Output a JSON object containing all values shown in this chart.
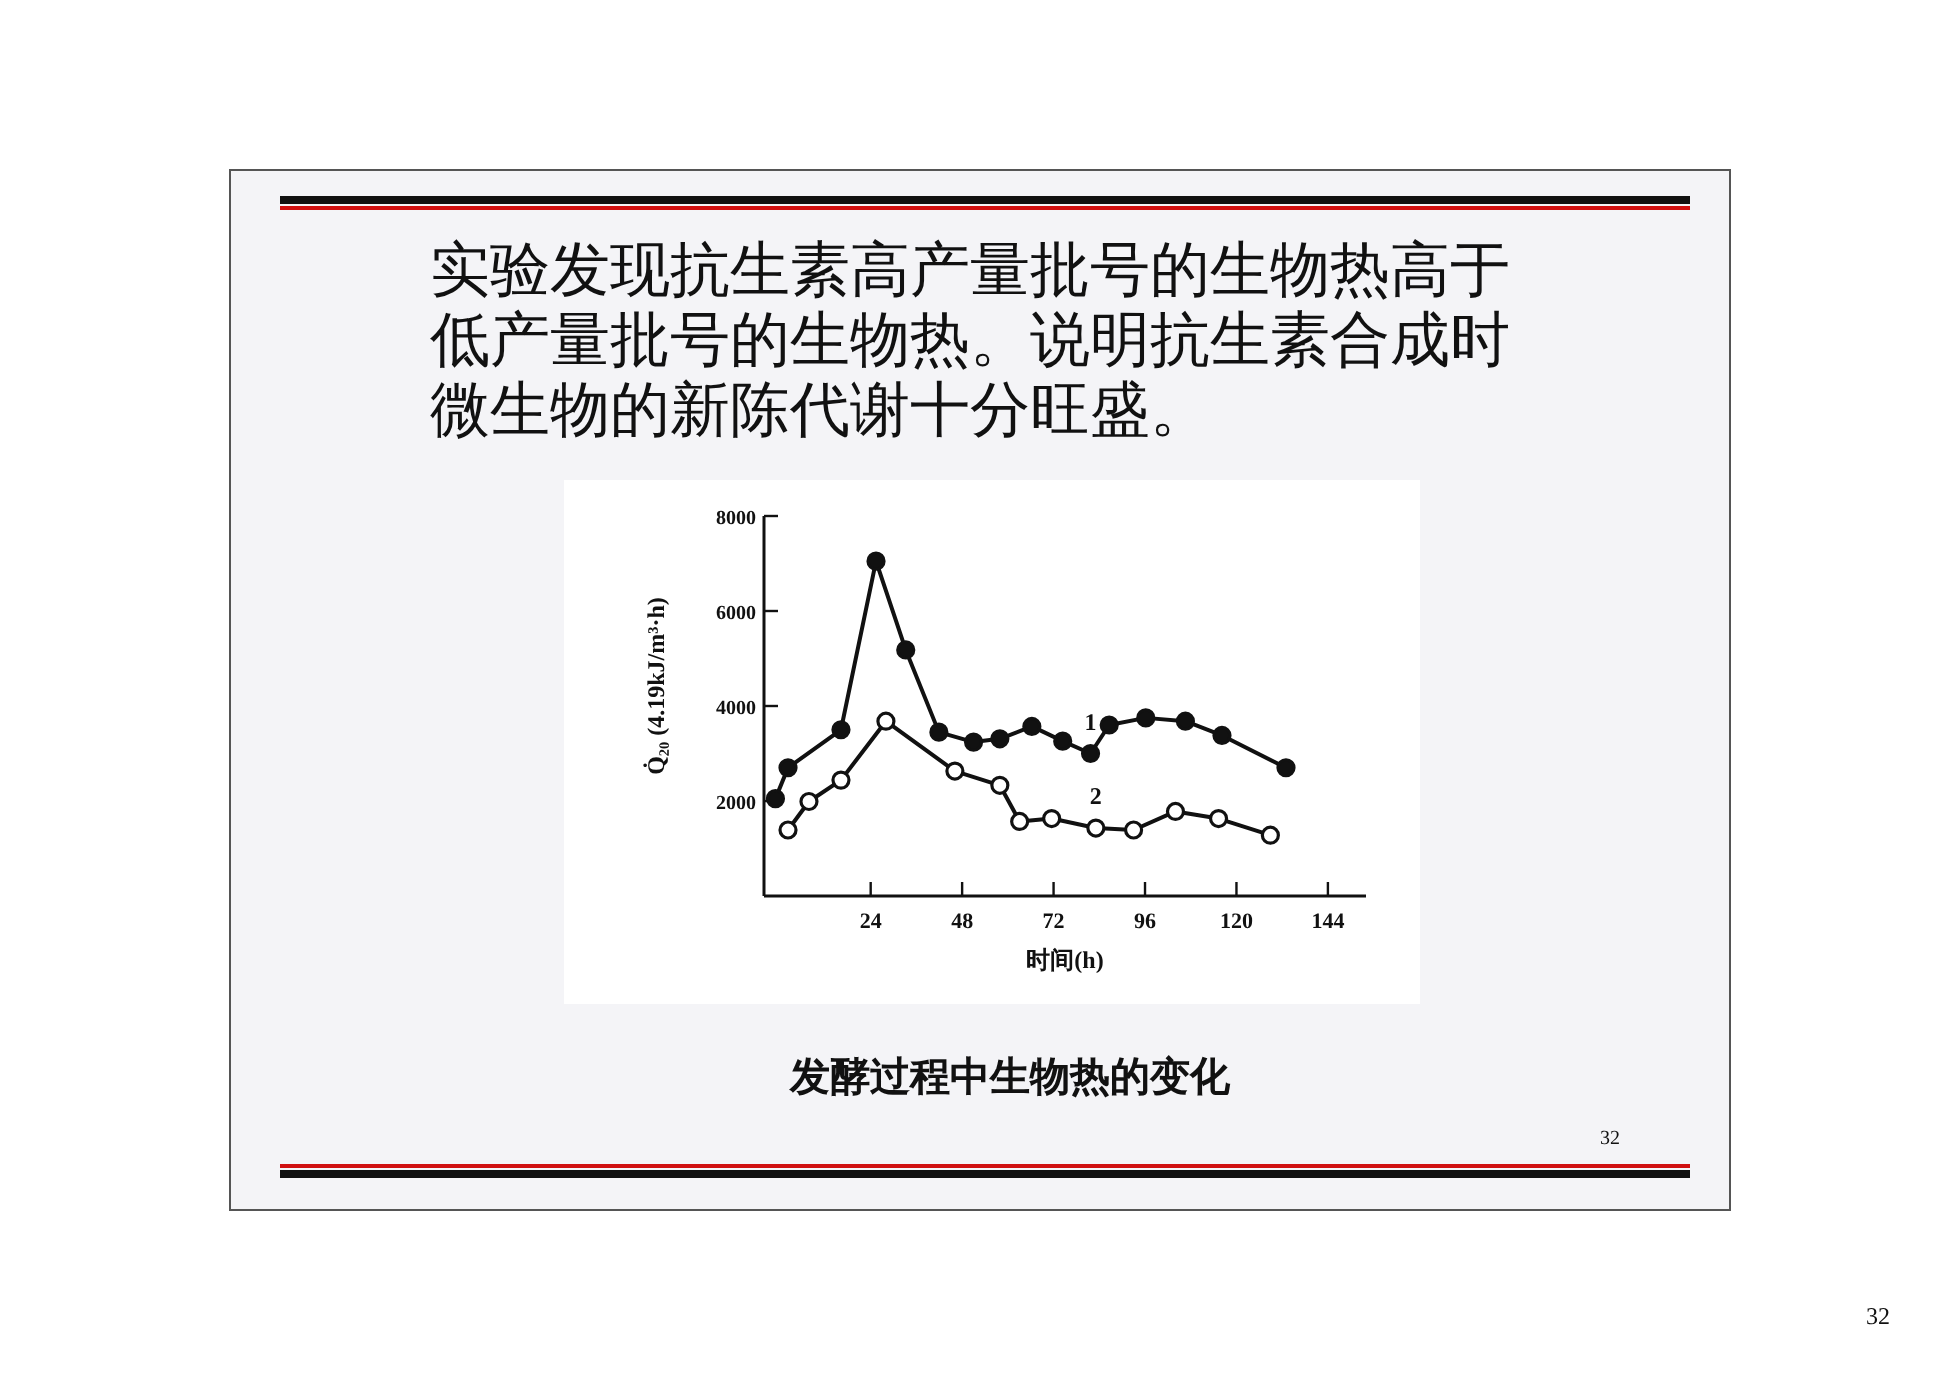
{
  "chart_data": {
    "type": "line",
    "title": "实验发现抗生素高产量批号的生物热高于低产量批号的生物热。说明抗生素合成时微生物的新陈代谢十分旺盛。",
    "xlabel": "时间(h)",
    "ylabel": "Q̇₂₀  (4.19kJ/m³·h)",
    "annotations": [
      "发酵过程中生物热的变化",
      "32",
      "32"
    ],
    "xlim": [
      -4,
      154
    ],
    "ylim": [
      0,
      8000
    ],
    "xticks": [
      24,
      48,
      72,
      96,
      120,
      144
    ],
    "yticks": [
      2000,
      4000,
      6000,
      8000
    ],
    "grid": false,
    "legend": false,
    "marker": "circle",
    "line_style": "solid",
    "series": [
      {
        "name": "1",
        "color": "#111111",
        "x": [
          -1,
          2.3,
          16.2,
          25.4,
          33.2,
          41.9,
          51,
          57.9,
          66.3,
          74.4,
          81.7,
          86.6,
          96.2,
          106.6,
          116.2,
          133
        ],
        "values": [
          2050,
          2700,
          3500,
          7050,
          5180,
          3450,
          3240,
          3310,
          3570,
          3260,
          3000,
          3600,
          3750,
          3680,
          3380,
          2700
        ]
      },
      {
        "name": "2",
        "color": "#111111",
        "x": [
          2.3,
          7.8,
          16.2,
          28,
          46.1,
          57.9,
          63.1,
          71.5,
          83.1,
          93,
          104,
          115.3,
          128.9
        ],
        "values": [
          1390,
          1990,
          2440,
          3680,
          2630,
          2330,
          1570,
          1630,
          1430,
          1390,
          1780,
          1630,
          1280
        ]
      }
    ]
  }
}
